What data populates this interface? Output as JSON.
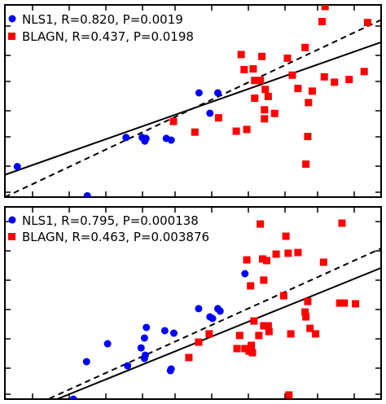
{
  "chart_data": [
    {
      "type": "scatter",
      "title": "",
      "xlabel": "",
      "ylabel": "",
      "xlim": [
        0,
        1
      ],
      "ylim": [
        0,
        1
      ],
      "grid": false,
      "legend": "top-left",
      "series": [
        {
          "name": "NLS1",
          "label": "NLS1, R=0.820, P=0.0019",
          "marker": "circle",
          "color": "#0000ff",
          "points": [
            [
              0.033,
              0.16
            ],
            [
              0.219,
              0.007
            ],
            [
              0.322,
              0.313
            ],
            [
              0.365,
              0.313
            ],
            [
              0.372,
              0.294
            ],
            [
              0.375,
              0.308
            ],
            [
              0.429,
              0.308
            ],
            [
              0.442,
              0.299
            ],
            [
              0.516,
              0.547
            ],
            [
              0.545,
              0.44
            ],
            [
              0.566,
              0.547
            ]
          ]
        },
        {
          "name": "BLAGN",
          "label": "BLAGN, R=0.437, P=0.0198",
          "marker": "square",
          "color": "#ff0000",
          "points": [
            [
              0.448,
              0.397
            ],
            [
              0.505,
              0.341
            ],
            [
              0.568,
              0.416
            ],
            [
              0.615,
              0.346
            ],
            [
              0.628,
              0.748
            ],
            [
              0.636,
              0.669
            ],
            [
              0.643,
              0.355
            ],
            [
              0.66,
              0.673
            ],
            [
              0.664,
              0.519
            ],
            [
              0.664,
              0.612
            ],
            [
              0.679,
              0.612
            ],
            [
              0.683,
              0.738
            ],
            [
              0.69,
              0.411
            ],
            [
              0.69,
              0.458
            ],
            [
              0.692,
              0.565
            ],
            [
              0.7,
              0.528
            ],
            [
              0.717,
              0.439
            ],
            [
              0.751,
              0.729
            ],
            [
              0.764,
              0.64
            ],
            [
              0.779,
              0.57
            ],
            [
              0.798,
              0.785
            ],
            [
              0.8,
              0.173
            ],
            [
              0.805,
              0.318
            ],
            [
              0.807,
              0.496
            ],
            [
              0.817,
              0.556
            ],
            [
              0.843,
              0.921
            ],
            [
              0.849,
              0.631
            ],
            [
              0.851,
              1.0
            ],
            [
              0.876,
              0.603
            ],
            [
              0.915,
              0.617
            ],
            [
              0.955,
              0.659
            ],
            [
              0.964,
              0.916
            ]
          ]
        }
      ],
      "fits": [
        {
          "name": "solid-fit-line",
          "style": "solid",
          "x": [
            0,
            1
          ],
          "y": [
            0.117,
            0.813
          ]
        },
        {
          "name": "dashed-fit-line",
          "style": "dashed",
          "x": [
            0,
            1
          ],
          "y": [
            0.0,
            0.93
          ]
        }
      ]
    },
    {
      "type": "scatter",
      "title": "",
      "xlabel": "",
      "ylabel": "",
      "xlim": [
        0,
        1
      ],
      "ylim": [
        0,
        1
      ],
      "grid": false,
      "legend": "top-left",
      "series": [
        {
          "name": "NLS1",
          "label": "NLS1, R=0.795, P=0.000138",
          "marker": "circle",
          "color": "#0000ff",
          "points": [
            [
              0.182,
              0.0
            ],
            [
              0.217,
              0.209
            ],
            [
              0.273,
              0.309
            ],
            [
              0.326,
              0.186
            ],
            [
              0.362,
              0.286
            ],
            [
              0.371,
              0.341
            ],
            [
              0.371,
              0.227
            ],
            [
              0.373,
              0.245
            ],
            [
              0.376,
              0.4
            ],
            [
              0.425,
              0.382
            ],
            [
              0.44,
              0.159
            ],
            [
              0.442,
              0.168
            ],
            [
              0.449,
              0.368
            ],
            [
              0.515,
              0.505
            ],
            [
              0.545,
              0.459
            ],
            [
              0.552,
              0.45
            ],
            [
              0.566,
              0.505
            ],
            [
              0.572,
              0.491
            ],
            [
              0.638,
              0.7
            ]
          ]
        },
        {
          "name": "BLAGN",
          "label": "BLAGN, R=0.463, P=0.003876",
          "marker": "square",
          "color": "#ff0000",
          "points": [
            [
              0.489,
              0.232
            ],
            [
              0.515,
              0.318
            ],
            [
              0.543,
              0.364
            ],
            [
              0.617,
              0.282
            ],
            [
              0.624,
              0.355
            ],
            [
              0.638,
              0.282
            ],
            [
              0.643,
              0.777
            ],
            [
              0.649,
              0.268
            ],
            [
              0.653,
              0.632
            ],
            [
              0.655,
              0.3
            ],
            [
              0.658,
              0.259
            ],
            [
              0.662,
              0.436
            ],
            [
              0.675,
              0.355
            ],
            [
              0.679,
              0.977
            ],
            [
              0.685,
              0.782
            ],
            [
              0.688,
              0.664
            ],
            [
              0.688,
              0.409
            ],
            [
              0.696,
              0.773
            ],
            [
              0.7,
              0.409
            ],
            [
              0.702,
              0.377
            ],
            [
              0.721,
              0.809
            ],
            [
              0.741,
              0.577
            ],
            [
              0.747,
              0.909
            ],
            [
              0.753,
              0.814
            ],
            [
              0.755,
              0.023
            ],
            [
              0.76,
              0.364
            ],
            [
              0.779,
              0.818
            ],
            [
              0.798,
              0.486
            ],
            [
              0.8,
              0.459
            ],
            [
              0.805,
              0.545
            ],
            [
              0.811,
              0.395
            ],
            [
              0.826,
              0.364
            ],
            [
              0.847,
              0.764
            ],
            [
              0.89,
              0.536
            ],
            [
              0.896,
              0.982
            ],
            [
              0.902,
              0.536
            ],
            [
              0.932,
              0.532
            ]
          ]
        }
      ],
      "fits": [
        {
          "name": "solid-fit-line",
          "style": "solid",
          "x": [
            0,
            1
          ],
          "y": [
            -0.118,
            0.732
          ]
        },
        {
          "name": "dashed-fit-line",
          "style": "dashed",
          "x": [
            0,
            1
          ],
          "y": [
            -0.109,
            0.841
          ]
        }
      ]
    }
  ]
}
